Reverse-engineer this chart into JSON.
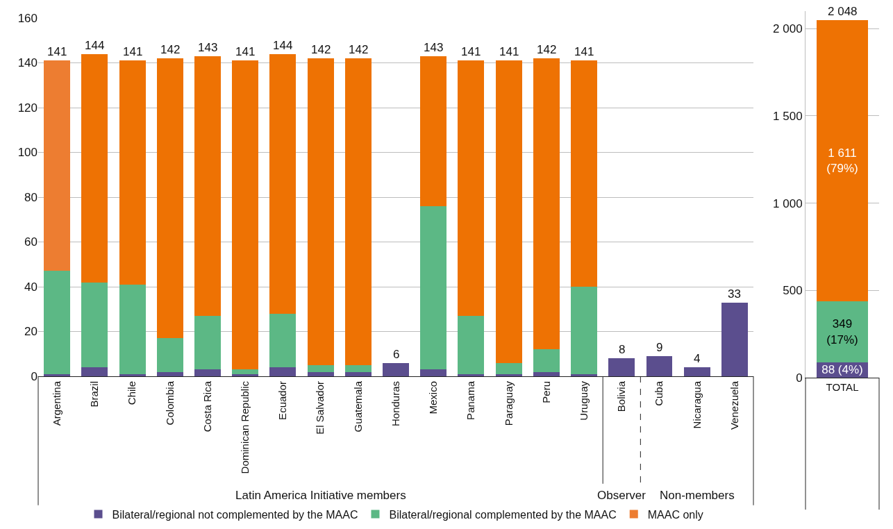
{
  "chart_data": [
    {
      "type": "bar",
      "stacked": true,
      "categories": [
        "Argentina",
        "Brazil",
        "Chile",
        "Colombia",
        "Costa Rica",
        "Dominican Republic",
        "Ecuador",
        "El Salvador",
        "Guatemala",
        "Honduras",
        "Mexico",
        "Panama",
        "Paraguay",
        "Peru",
        "Uruguay",
        "Bolivia",
        "Cuba",
        "Nicaragua",
        "Venezuela"
      ],
      "series": [
        {
          "name": "Bilateral/regional not complemented by the MAAC",
          "color": "#5b4e8e",
          "values": [
            1,
            4,
            1,
            2,
            3,
            1,
            4,
            2,
            2,
            6,
            3,
            1,
            1,
            2,
            1,
            8,
            9,
            4,
            33
          ]
        },
        {
          "name": "Bilateral/regional complemented by the MAAC",
          "color": "#5cb885",
          "values": [
            46,
            38,
            40,
            15,
            24,
            2,
            24,
            3,
            3,
            null,
            73,
            26,
            5,
            10,
            39,
            null,
            null,
            null,
            null
          ]
        },
        {
          "name": "MAAC only",
          "color": "#ee7203",
          "colors": [
            "#ed7d31",
            null,
            null,
            null,
            null,
            null,
            null,
            null,
            null,
            null,
            null,
            null,
            null,
            null,
            null,
            null,
            null,
            null,
            null
          ],
          "values": [
            94,
            102,
            100,
            125,
            116,
            138,
            116,
            137,
            137,
            null,
            67,
            114,
            135,
            130,
            101,
            null,
            null,
            null,
            null
          ]
        }
      ],
      "totals": [
        "141",
        "144",
        "141",
        "142",
        "143",
        "141",
        "144",
        "142",
        "142",
        "6",
        "143",
        "141",
        "141",
        "142",
        "141",
        "8",
        "9",
        "4",
        "33"
      ],
      "ylim": [
        0,
        160
      ],
      "yticks": [
        0,
        20,
        40,
        60,
        80,
        100,
        120,
        140,
        160
      ],
      "grid": "y",
      "legend": "bottom",
      "annotations": [
        "Latin America Initiative members",
        "Observer",
        "Non-members"
      ]
    },
    {
      "type": "bar",
      "stacked": true,
      "categories": [
        "TOTAL"
      ],
      "series": [
        {
          "color": "#5b4e8e",
          "values": [
            88
          ],
          "value_labels": [
            "88 (4%)"
          ]
        },
        {
          "color": "#5cb885",
          "values": [
            349
          ],
          "value_labels": [
            "349\n(17%)"
          ]
        },
        {
          "color": "#ee7203",
          "values": [
            1611
          ],
          "value_labels": [
            "1 611\n(79%)"
          ]
        }
      ],
      "totals": [
        "2 048"
      ],
      "ylim": [
        0,
        2100
      ],
      "yticks": [
        0,
        500,
        {
          "value": 1000,
          "label": "1 000"
        },
        {
          "value": 1500,
          "label": "1 500"
        },
        {
          "value": 2000,
          "label": "2 000"
        }
      ],
      "grid": "y"
    }
  ]
}
